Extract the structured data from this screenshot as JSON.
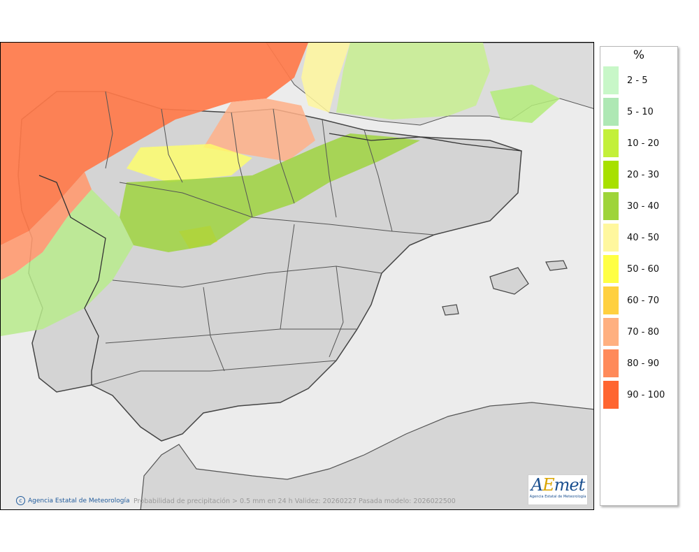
{
  "legend": {
    "unit": "%",
    "classes": [
      {
        "label": "2 - 5",
        "color": "#c8f7c8"
      },
      {
        "label": "5 - 10",
        "color": "#aee8b4"
      },
      {
        "label": "10 - 20",
        "color": "#c3f03a"
      },
      {
        "label": "20 - 30",
        "color": "#a8e000"
      },
      {
        "label": "30 - 40",
        "color": "#9ed43a"
      },
      {
        "label": "40 - 50",
        "color": "#fff79e"
      },
      {
        "label": "50 - 60",
        "color": "#ffff44"
      },
      {
        "label": "60 - 70",
        "color": "#ffd040"
      },
      {
        "label": "70 - 80",
        "color": "#ffb080"
      },
      {
        "label": "80 - 90",
        "color": "#ff8a5a"
      },
      {
        "label": "90 - 100",
        "color": "#ff6530"
      }
    ]
  },
  "footer": {
    "credit": "Agencia Estatal de Meteorología",
    "caption": "Probabilidad de precipitación > 0.5 mm en 24 h Validez: 20260227 Pasada modelo: 2026022500"
  },
  "logo": {
    "wordmark_a": "A",
    "wordmark_e": "E",
    "wordmark_rest": "met",
    "subtitle": "Agencia Estatal de Meteorología"
  },
  "map_colors": {
    "sea": "#ececec",
    "land": "#d4d4d4",
    "border": "#444444"
  }
}
